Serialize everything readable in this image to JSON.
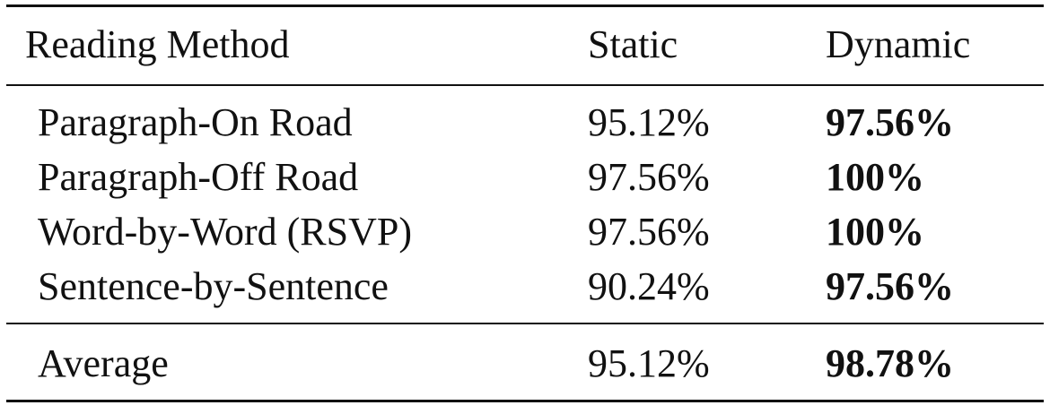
{
  "table": {
    "headers": {
      "method": "Reading Method",
      "static": "Static",
      "dynamic": "Dynamic"
    },
    "rows": [
      {
        "method": "Paragraph-On Road",
        "static": "95.12%",
        "dynamic": "97.56%"
      },
      {
        "method": "Paragraph-Off Road",
        "static": "97.56%",
        "dynamic": "100%"
      },
      {
        "method": "Word-by-Word (RSVP)",
        "static": "97.56%",
        "dynamic": "100%"
      },
      {
        "method": "Sentence-by-Sentence",
        "static": "90.24%",
        "dynamic": "97.56%"
      }
    ],
    "average": {
      "method": "Average",
      "static": "95.12%",
      "dynamic": "98.78%"
    }
  }
}
